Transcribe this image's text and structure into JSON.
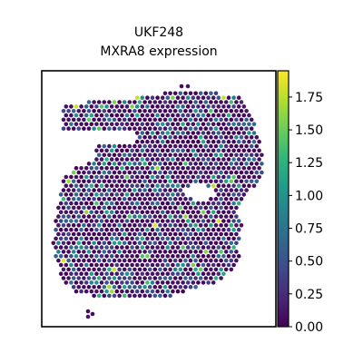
{
  "title_lines": [
    "UKF248",
    "MXRA8 expression"
  ],
  "chart_data": {
    "type": "spatial-scatter",
    "title": "UKF248\nMXRA8 expression",
    "colormap": "viridis",
    "color_range": [
      0.0,
      1.95
    ],
    "colorbar_ticks": [
      "0.00",
      "0.25",
      "0.50",
      "0.75",
      "1.00",
      "1.25",
      "1.50",
      "1.75"
    ],
    "colorbar_tick_values": [
      0.0,
      0.25,
      0.5,
      0.75,
      1.0,
      1.25,
      1.5,
      1.75
    ],
    "axes_ticks": "none",
    "viridis_stops": [
      "#440154",
      "#482878",
      "#3e4989",
      "#31688e",
      "#26828e",
      "#1f9e89",
      "#35b779",
      "#6ece58",
      "#b5de2b",
      "#fde725"
    ],
    "points_summary": "hexagonal Visium spot grid, most spots near 0 (dark purple), scattered spots 0.3–1.2, a few outliers up to ~1.9"
  }
}
